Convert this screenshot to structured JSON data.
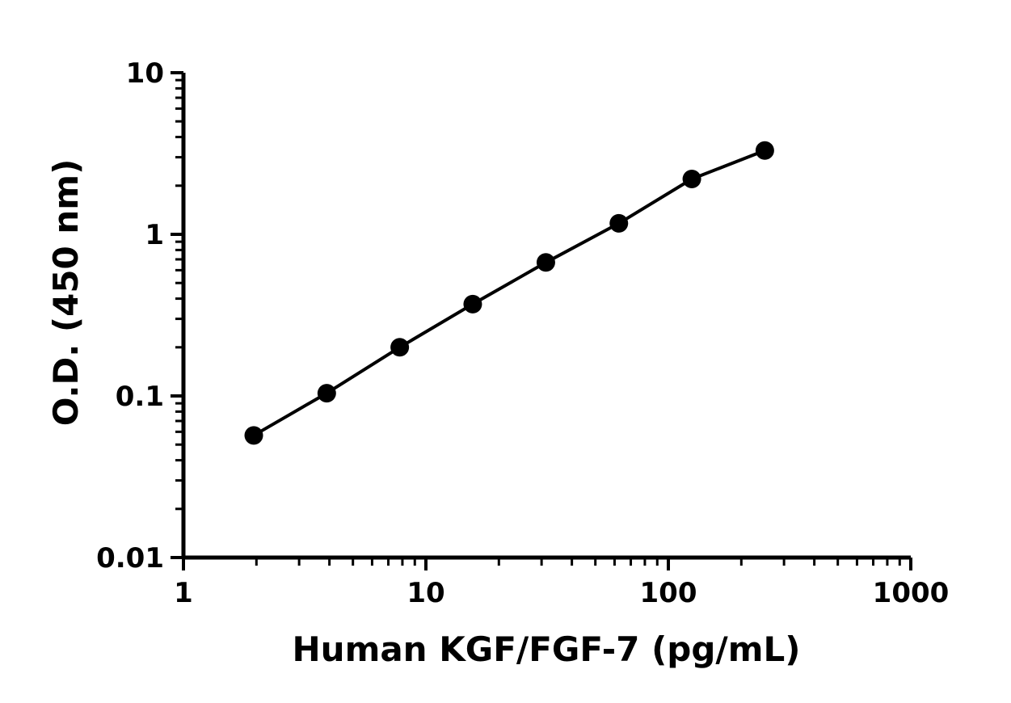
{
  "chart_data": {
    "type": "scatter",
    "title": "",
    "xlabel": "Human KGF/FGF-7 (pg/mL)",
    "ylabel": "O.D. (450 nm)",
    "xscale": "log",
    "yscale": "log",
    "xlim": [
      1,
      1000
    ],
    "ylim": [
      0.01,
      10
    ],
    "x_ticks": [
      {
        "value": 1,
        "label": "1"
      },
      {
        "value": 10,
        "label": "10"
      },
      {
        "value": 100,
        "label": "100"
      },
      {
        "value": 1000,
        "label": "1000"
      }
    ],
    "y_ticks": [
      {
        "value": 0.01,
        "label": "0.01"
      },
      {
        "value": 0.1,
        "label": "0.1"
      },
      {
        "value": 1,
        "label": "1"
      },
      {
        "value": 10,
        "label": "10"
      }
    ],
    "grid": false,
    "fit_line": true,
    "marker_color": "#000000",
    "line_color": "#000000",
    "series": [
      {
        "x": [
          1.95,
          3.9,
          7.8,
          15.6,
          31.25,
          62.5,
          125,
          250
        ],
        "y": [
          0.057,
          0.104,
          0.2,
          0.37,
          0.67,
          1.17,
          2.2,
          3.3
        ]
      }
    ]
  }
}
